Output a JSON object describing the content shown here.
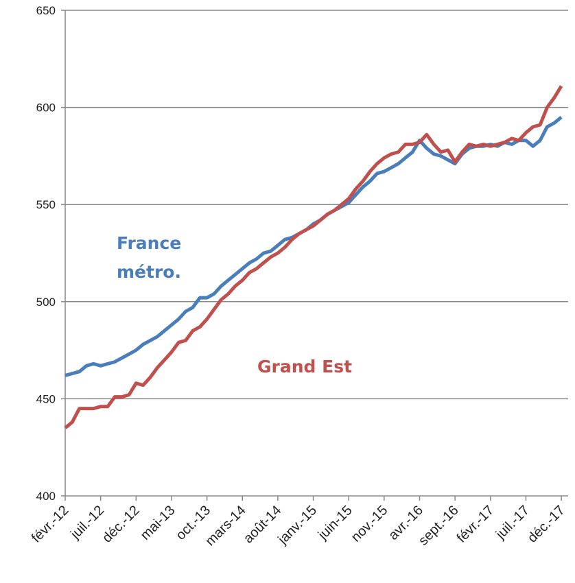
{
  "chart_data": {
    "type": "line",
    "categories": [
      "févr.-12",
      null,
      null,
      null,
      null,
      "juil.-12",
      null,
      null,
      null,
      null,
      "déc.-12",
      null,
      null,
      null,
      null,
      "mai-13",
      null,
      null,
      null,
      null,
      "oct.-13",
      null,
      null,
      null,
      null,
      "mars-14",
      null,
      null,
      null,
      null,
      "août-14",
      null,
      null,
      null,
      null,
      "janv.-15",
      null,
      null,
      null,
      null,
      "juin-15",
      null,
      null,
      null,
      null,
      "nov.-15",
      null,
      null,
      null,
      null,
      "avr.-16",
      null,
      null,
      null,
      null,
      "sept.-16",
      null,
      null,
      null,
      null,
      "févr.-17",
      null,
      null,
      null,
      null,
      "juil.-17",
      null,
      null,
      null,
      null,
      "déc.-17"
    ],
    "series": [
      {
        "name": "France métro.",
        "color": "#4a7ebb",
        "values": [
          462,
          463,
          464,
          467,
          468,
          467,
          468,
          469,
          471,
          473,
          475,
          478,
          480,
          482,
          485,
          488,
          491,
          495,
          497,
          502,
          502,
          504,
          508,
          511,
          514,
          517,
          520,
          522,
          525,
          526,
          529,
          532,
          533,
          535,
          537,
          540,
          542,
          545,
          547,
          549,
          551,
          555,
          559,
          562,
          566,
          567,
          569,
          571,
          574,
          577,
          583,
          579,
          576,
          575,
          573,
          571,
          576,
          579,
          580,
          580,
          581,
          580,
          582,
          581,
          583,
          583,
          580,
          583,
          590,
          592,
          595
        ]
      },
      {
        "name": "Grand Est",
        "color": "#c0504d",
        "values": [
          435,
          438,
          445,
          445,
          445,
          446,
          446,
          451,
          451,
          452,
          458,
          457,
          461,
          466,
          470,
          474,
          479,
          480,
          485,
          487,
          491,
          496,
          501,
          504,
          508,
          511,
          515,
          517,
          520,
          523,
          525,
          528,
          532,
          535,
          537,
          539,
          542,
          545,
          547,
          550,
          553,
          558,
          562,
          567,
          571,
          574,
          576,
          577,
          581,
          581,
          582,
          586,
          581,
          577,
          578,
          572,
          577,
          581,
          580,
          581,
          580,
          581,
          582,
          584,
          583,
          587,
          590,
          591,
          600,
          605,
          611
        ]
      }
    ],
    "ylim": [
      400,
      650
    ],
    "yticks": [
      400,
      450,
      500,
      550,
      600,
      650
    ],
    "grid": true
  }
}
